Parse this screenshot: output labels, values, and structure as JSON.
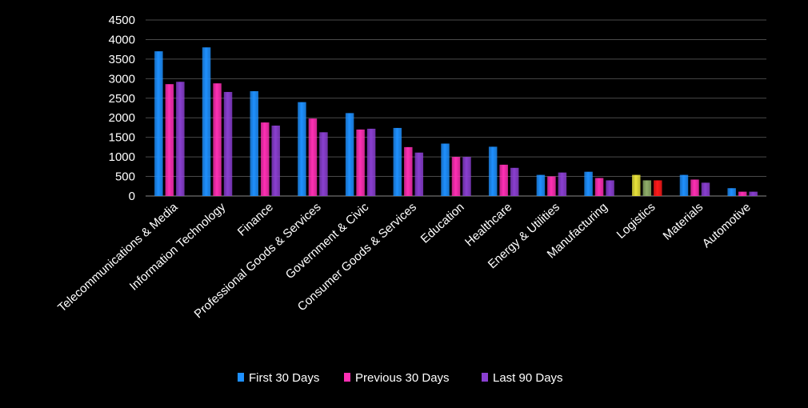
{
  "chart_data": {
    "type": "bar",
    "categories": [
      "Telecommunications & Media",
      "Information Technology",
      "Finance",
      "Professional Goods & Services",
      "Government & Civic",
      "Consumer Goods &  Services",
      "Education",
      "Healthcare",
      "Energy & Utilities",
      "Manufacturing",
      "Logistics",
      "Materials",
      "Automotive"
    ],
    "series": [
      {
        "name": "First 30 Days",
        "color": "#1e90ff",
        "values": [
          3700,
          3800,
          2680,
          2400,
          2120,
          1740,
          1340,
          1260,
          540,
          620,
          540,
          540,
          200
        ]
      },
      {
        "name": "Previous 30 Days",
        "color": "#ff2fb4",
        "values": [
          2860,
          2880,
          1880,
          1980,
          1700,
          1250,
          1000,
          800,
          500,
          460,
          400,
          420,
          110
        ]
      },
      {
        "name": "Last 90 Days",
        "color": "#8a3fd1",
        "values": [
          2920,
          2660,
          1800,
          1630,
          1720,
          1110,
          1000,
          720,
          600,
          400,
          400,
          340,
          110
        ]
      }
    ],
    "special_colors": {
      "Logistics": [
        "#e8e23a",
        "#8fae6a",
        "#ff1a1a"
      ]
    },
    "yticks": [
      0,
      500,
      1000,
      1500,
      2000,
      2500,
      3000,
      3500,
      4000,
      4500
    ],
    "ylim": [
      0,
      4500
    ],
    "grid": true,
    "legend_position": "bottom",
    "title": "",
    "xlabel": "",
    "ylabel": ""
  }
}
